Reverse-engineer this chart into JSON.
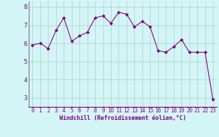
{
  "x": [
    0,
    1,
    2,
    3,
    4,
    5,
    6,
    7,
    8,
    9,
    10,
    11,
    12,
    13,
    14,
    15,
    16,
    17,
    18,
    19,
    20,
    21,
    22,
    23
  ],
  "y": [
    5.9,
    6.0,
    5.7,
    6.7,
    7.4,
    6.1,
    6.4,
    6.6,
    7.4,
    7.5,
    7.1,
    7.7,
    7.6,
    6.9,
    7.2,
    6.9,
    5.6,
    5.5,
    5.8,
    6.2,
    5.5,
    5.5,
    5.5,
    2.9
  ],
  "line_color": "#800080",
  "marker": "D",
  "marker_size": 2.2,
  "bg_color": "#d4f5f5",
  "grid_color": "#aacccc",
  "tick_color": "#800080",
  "label_color": "#800080",
  "xlabel": "Windchill (Refroidissement éolien,°C)",
  "xlim": [
    -0.5,
    23.5
  ],
  "ylim": [
    2.5,
    8.3
  ],
  "yticks": [
    3,
    4,
    5,
    6,
    7,
    8
  ],
  "xticks": [
    0,
    1,
    2,
    3,
    4,
    5,
    6,
    7,
    8,
    9,
    10,
    11,
    12,
    13,
    14,
    15,
    16,
    17,
    18,
    19,
    20,
    21,
    22,
    23
  ],
  "tick_fontsize": 5.5,
  "xlabel_fontsize": 6.0
}
